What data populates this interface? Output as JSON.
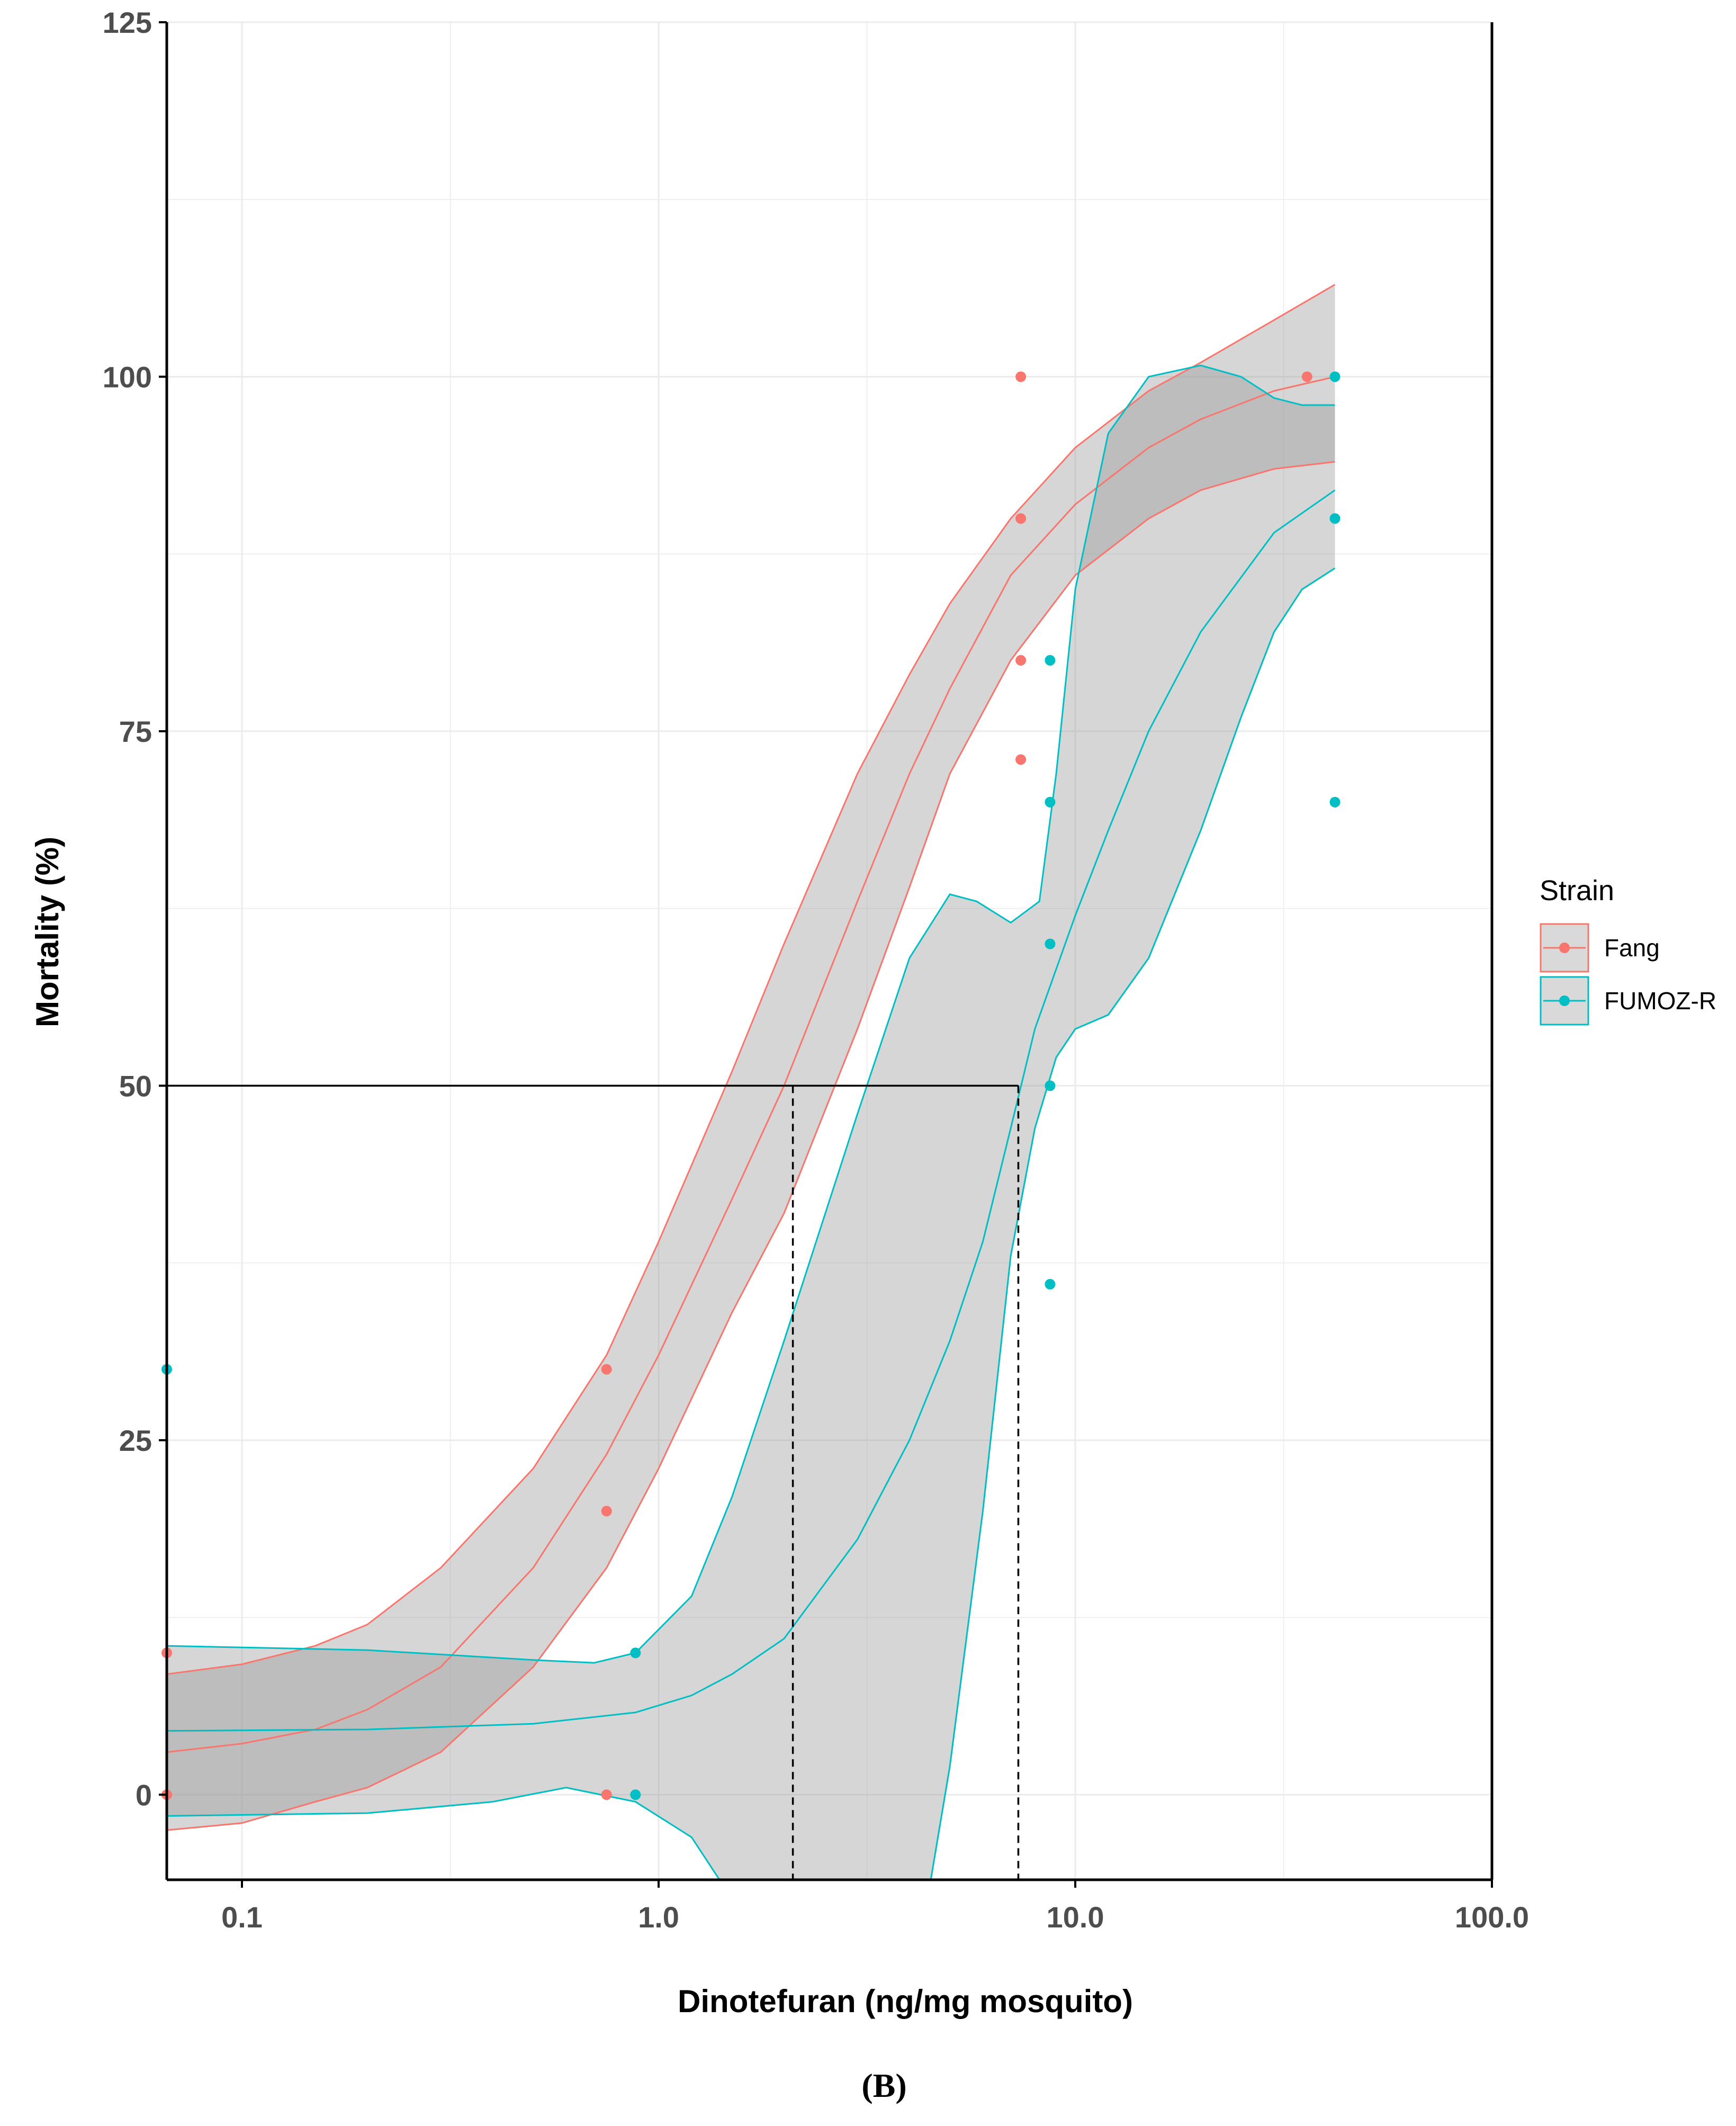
{
  "chart_data": {
    "type": "scatter",
    "xscale": "log",
    "xlim": [
      0.066,
      100
    ],
    "ylim": [
      -6,
      125
    ],
    "xlabel": "Dinotefuran (ng/mg mosquito)",
    "ylabel": "Mortality (%)",
    "x_tick_values": [
      0.1,
      1,
      10,
      100
    ],
    "x_tick_labels": [
      "0.1",
      "1.0",
      "10.0",
      "100.0"
    ],
    "y_ticks": [
      0,
      25,
      50,
      75,
      100,
      125
    ],
    "y_tick_labels": [
      "0",
      "25",
      "50",
      "75",
      "100",
      "125"
    ],
    "grid": true,
    "legend": {
      "title": "Strain",
      "position": "right",
      "entries": [
        "Fang",
        "FUMOZ-R"
      ]
    },
    "series": [
      {
        "name": "Fang",
        "color": "#F8766D",
        "points": [
          [
            0.066,
            0
          ],
          [
            0.066,
            10
          ],
          [
            0.75,
            0
          ],
          [
            0.75,
            20
          ],
          [
            0.75,
            30
          ],
          [
            7.4,
            73
          ],
          [
            7.4,
            80
          ],
          [
            7.4,
            90
          ],
          [
            7.4,
            100
          ],
          [
            36,
            100
          ]
        ],
        "fit": [
          [
            0.066,
            3
          ],
          [
            0.1,
            3.6
          ],
          [
            0.15,
            4.6
          ],
          [
            0.2,
            6
          ],
          [
            0.3,
            9
          ],
          [
            0.5,
            16
          ],
          [
            0.75,
            24
          ],
          [
            1.0,
            31
          ],
          [
            1.5,
            42
          ],
          [
            2.0,
            50
          ],
          [
            3.0,
            63
          ],
          [
            4.0,
            72
          ],
          [
            5.0,
            78
          ],
          [
            7.0,
            86
          ],
          [
            10,
            91
          ],
          [
            15,
            95
          ],
          [
            20,
            97
          ],
          [
            30,
            99
          ],
          [
            42,
            100
          ]
        ],
        "upper": [
          [
            0.066,
            8.5
          ],
          [
            0.1,
            9.2
          ],
          [
            0.15,
            10.5
          ],
          [
            0.2,
            12
          ],
          [
            0.3,
            16
          ],
          [
            0.5,
            23
          ],
          [
            0.75,
            31
          ],
          [
            1.0,
            39
          ],
          [
            1.5,
            51
          ],
          [
            2.0,
            60
          ],
          [
            3.0,
            72
          ],
          [
            4.0,
            79
          ],
          [
            5.0,
            84
          ],
          [
            7.0,
            90
          ],
          [
            10,
            95
          ],
          [
            15,
            99
          ],
          [
            20,
            101
          ],
          [
            30,
            104
          ],
          [
            42,
            106.5
          ]
        ],
        "lower": [
          [
            0.066,
            -2.5
          ],
          [
            0.1,
            -2
          ],
          [
            0.15,
            -0.5
          ],
          [
            0.2,
            0.5
          ],
          [
            0.3,
            3
          ],
          [
            0.5,
            9
          ],
          [
            0.75,
            16
          ],
          [
            1.0,
            23
          ],
          [
            1.5,
            34
          ],
          [
            2.0,
            41
          ],
          [
            3.0,
            54
          ],
          [
            4.0,
            64
          ],
          [
            5.0,
            72
          ],
          [
            7.0,
            80
          ],
          [
            10,
            86
          ],
          [
            15,
            90
          ],
          [
            20,
            92
          ],
          [
            30,
            93.5
          ],
          [
            42,
            94
          ]
        ]
      },
      {
        "name": "FUMOZ-R",
        "color": "#00BFC4",
        "points": [
          [
            0.066,
            30
          ],
          [
            0.88,
            0
          ],
          [
            0.88,
            10
          ],
          [
            8.7,
            36
          ],
          [
            8.7,
            50
          ],
          [
            8.7,
            60
          ],
          [
            8.7,
            70
          ],
          [
            8.7,
            80
          ],
          [
            42,
            70
          ],
          [
            42,
            90
          ],
          [
            42,
            100
          ]
        ],
        "fit": [
          [
            0.066,
            4.5
          ],
          [
            0.2,
            4.6
          ],
          [
            0.5,
            5
          ],
          [
            0.88,
            5.8
          ],
          [
            1.2,
            7
          ],
          [
            1.5,
            8.5
          ],
          [
            2.0,
            11
          ],
          [
            3.0,
            18
          ],
          [
            4.0,
            25
          ],
          [
            5.0,
            32
          ],
          [
            6.0,
            39
          ],
          [
            7.0,
            47
          ],
          [
            8.0,
            54
          ],
          [
            10,
            62
          ],
          [
            12,
            68
          ],
          [
            15,
            75
          ],
          [
            20,
            82
          ],
          [
            30,
            89
          ],
          [
            42,
            92
          ]
        ],
        "upper": [
          [
            0.066,
            10.5
          ],
          [
            0.2,
            10.2
          ],
          [
            0.5,
            9.5
          ],
          [
            0.7,
            9.3
          ],
          [
            0.88,
            10
          ],
          [
            1.2,
            14
          ],
          [
            1.5,
            21
          ],
          [
            2.0,
            32
          ],
          [
            3.0,
            48
          ],
          [
            4.0,
            59
          ],
          [
            5.0,
            63.5
          ],
          [
            5.8,
            63
          ],
          [
            7.0,
            61.5
          ],
          [
            8.2,
            63
          ],
          [
            9.0,
            72
          ],
          [
            10,
            85
          ],
          [
            12,
            96
          ],
          [
            15,
            100
          ],
          [
            20,
            100.8
          ],
          [
            25,
            100
          ],
          [
            30,
            98.5
          ],
          [
            35,
            98
          ],
          [
            42,
            98
          ]
        ],
        "lower": [
          [
            0.066,
            -1.5
          ],
          [
            0.2,
            -1.3
          ],
          [
            0.4,
            -0.5
          ],
          [
            0.6,
            0.5
          ],
          [
            0.88,
            -0.5
          ],
          [
            1.2,
            -3
          ],
          [
            1.4,
            -6
          ],
          [
            4.5,
            -6
          ],
          [
            5.0,
            2
          ],
          [
            6.0,
            20
          ],
          [
            7.0,
            38
          ],
          [
            8.0,
            47
          ],
          [
            9.0,
            52
          ],
          [
            10,
            54
          ],
          [
            12,
            55
          ],
          [
            15,
            59
          ],
          [
            20,
            68
          ],
          [
            25,
            76
          ],
          [
            30,
            82
          ],
          [
            35,
            85
          ],
          [
            42,
            86.5
          ]
        ]
      }
    ],
    "reference_lines": {
      "horizontal_y": 50,
      "horizontal_x_end": 7.3,
      "vertical_x": [
        2.1,
        7.3
      ]
    },
    "caption": "(B)"
  }
}
